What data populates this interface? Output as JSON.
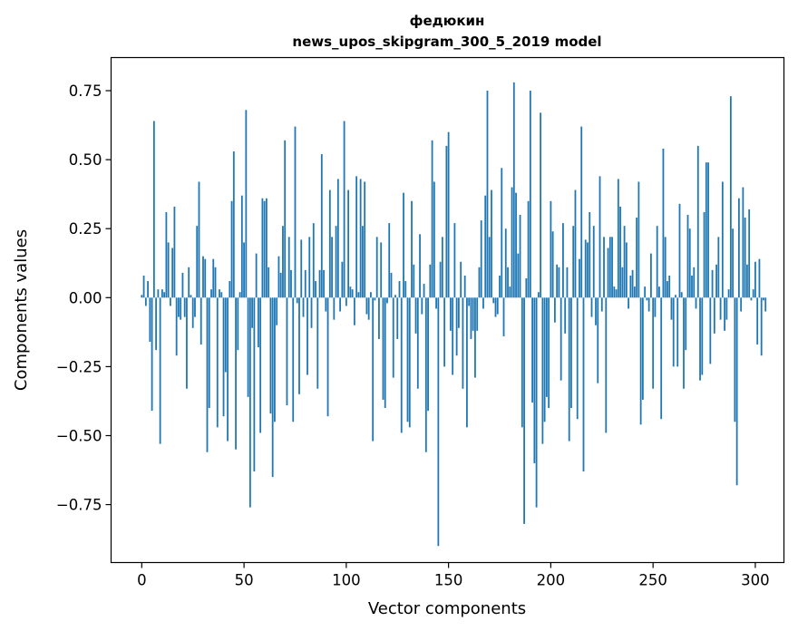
{
  "chart_data": {
    "type": "bar",
    "title": [
      "федюкин",
      "news_upos_skipgram_300_5_2019 model"
    ],
    "xlabel": "Vector components",
    "ylabel": "Components values",
    "xlim": [
      -15,
      314
    ],
    "ylim": [
      -0.96,
      0.87
    ],
    "x_ticks": [
      0,
      50,
      100,
      150,
      200,
      250,
      300
    ],
    "y_ticks": [
      -0.75,
      -0.5,
      -0.25,
      0.0,
      0.25,
      0.5,
      0.75
    ],
    "y_tick_labels": [
      "−0.75",
      "−0.50",
      "−0.25",
      "0.00",
      "0.25",
      "0.50",
      "0.75"
    ],
    "grid": false,
    "bar_color": "#1f77b4",
    "values": [
      0.01,
      0.08,
      -0.03,
      0.06,
      -0.16,
      -0.41,
      0.64,
      -0.19,
      0.03,
      -0.53,
      0.03,
      0.02,
      0.31,
      0.2,
      -0.03,
      0.18,
      0.33,
      -0.21,
      -0.07,
      -0.08,
      0.09,
      -0.07,
      -0.33,
      0.11,
      0.01,
      -0.11,
      -0.07,
      0.26,
      0.42,
      -0.17,
      0.15,
      0.14,
      -0.56,
      -0.4,
      0.03,
      0.14,
      0.11,
      -0.47,
      0.03,
      0.02,
      -0.43,
      -0.27,
      -0.52,
      0.06,
      0.35,
      0.53,
      -0.55,
      -0.19,
      0.02,
      0.37,
      0.2,
      0.68,
      -0.36,
      -0.76,
      -0.11,
      -0.63,
      0.16,
      -0.18,
      -0.49,
      0.36,
      0.35,
      0.36,
      0.11,
      -0.42,
      -0.65,
      -0.45,
      -0.1,
      0.15,
      0.09,
      0.26,
      0.57,
      -0.39,
      0.22,
      0.1,
      -0.45,
      0.62,
      -0.02,
      -0.35,
      0.21,
      -0.07,
      0.1,
      -0.28,
      0.22,
      -0.11,
      0.27,
      0.06,
      -0.33,
      0.1,
      0.52,
      0.1,
      -0.05,
      -0.43,
      0.39,
      0.22,
      -0.08,
      0.26,
      0.43,
      -0.05,
      0.13,
      0.64,
      -0.03,
      0.39,
      0.04,
      0.03,
      -0.1,
      0.44,
      0.02,
      0.43,
      0.26,
      0.42,
      -0.06,
      -0.08,
      0.02,
      -0.52,
      -0.01,
      0.22,
      -0.15,
      0.2,
      -0.37,
      -0.4,
      -0.02,
      0.27,
      0.09,
      -0.29,
      0.01,
      -0.15,
      0.06,
      -0.49,
      0.38,
      0.06,
      -0.45,
      -0.47,
      0.35,
      0.12,
      -0.13,
      -0.33,
      0.23,
      -0.06,
      0.05,
      -0.56,
      -0.41,
      0.12,
      0.57,
      0.42,
      -0.04,
      -0.9,
      0.13,
      0.22,
      -0.25,
      0.55,
      0.6,
      -0.12,
      -0.28,
      0.27,
      -0.21,
      -0.11,
      0.13,
      -0.33,
      0.08,
      -0.47,
      -0.03,
      -0.15,
      -0.12,
      -0.29,
      -0.12,
      0.11,
      0.28,
      -0.04,
      0.37,
      0.75,
      0.22,
      0.39,
      -0.02,
      -0.07,
      -0.06,
      0.08,
      0.47,
      -0.14,
      0.25,
      0.11,
      0.04,
      0.4,
      0.78,
      0.38,
      0.16,
      0.3,
      -0.47,
      -0.82,
      0.07,
      0.35,
      0.75,
      -0.38,
      -0.6,
      -0.76,
      0.02,
      0.67,
      -0.53,
      -0.45,
      -0.36,
      -0.4,
      0.35,
      0.24,
      -0.09,
      0.12,
      0.11,
      -0.3,
      0.27,
      -0.13,
      0.11,
      -0.52,
      -0.4,
      0.26,
      0.39,
      -0.44,
      0.14,
      0.62,
      -0.63,
      0.21,
      0.2,
      0.31,
      -0.07,
      0.26,
      -0.1,
      -0.31,
      0.44,
      -0.05,
      0.22,
      -0.49,
      0.18,
      0.22,
      0.22,
      0.04,
      0.03,
      0.43,
      0.33,
      0.11,
      0.26,
      0.2,
      -0.04,
      0.08,
      0.1,
      0.04,
      0.29,
      0.42,
      -0.46,
      -0.37,
      0.04,
      -0.01,
      -0.05,
      0.16,
      -0.33,
      -0.07,
      0.26,
      0.04,
      -0.44,
      0.54,
      0.22,
      0.06,
      0.08,
      -0.08,
      -0.25,
      0.01,
      -0.25,
      0.34,
      0.02,
      -0.33,
      -0.19,
      0.3,
      0.25,
      0.08,
      0.11,
      -0.04,
      0.55,
      -0.3,
      -0.28,
      0.31,
      0.49,
      0.49,
      -0.24,
      0.1,
      -0.13,
      0.12,
      0.22,
      -0.08,
      0.42,
      -0.12,
      -0.08,
      0.03,
      0.73,
      0.25,
      -0.45,
      -0.68,
      0.36,
      -0.05,
      0.4,
      0.29,
      0.12,
      0.32,
      -0.01,
      0.03,
      0.13,
      -0.17,
      0.14,
      -0.21,
      -0.01,
      -0.05
    ]
  }
}
